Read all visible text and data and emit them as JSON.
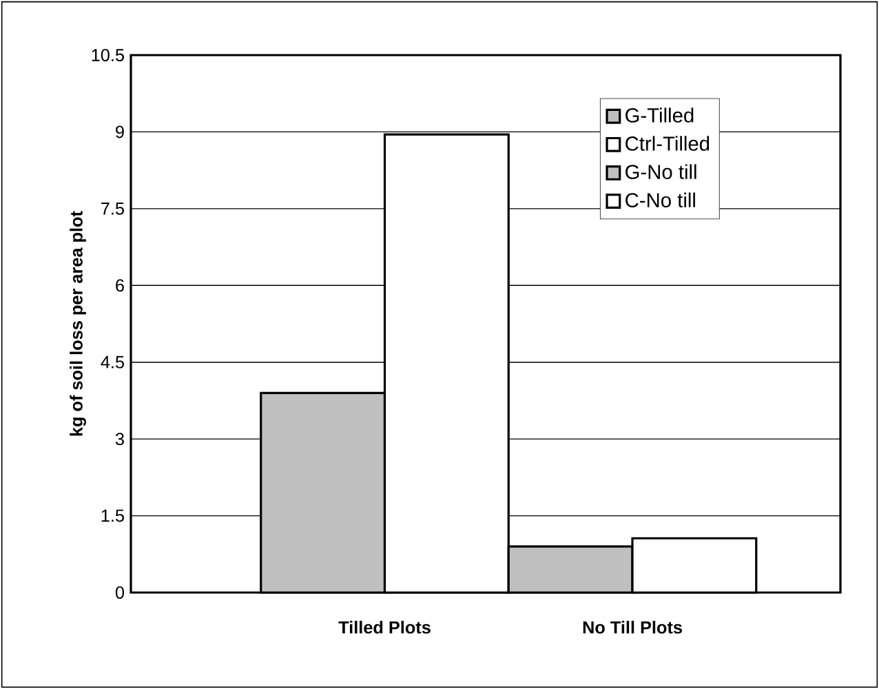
{
  "chart_data": {
    "type": "bar",
    "ylabel": "kg of soil loss per area plot",
    "categories": [
      "Tilled Plots",
      "No Till Plots"
    ],
    "series": [
      {
        "name": "G-Tilled",
        "color": "#c0c0c0",
        "values": [
          3.9,
          null
        ]
      },
      {
        "name": "Ctrl-Tilled",
        "color": "#ffffff",
        "values": [
          8.95,
          null
        ]
      },
      {
        "name": "G-No till",
        "color": "#c0c0c0",
        "values": [
          null,
          0.9
        ]
      },
      {
        "name": "C-No till",
        "color": "#ffffff",
        "values": [
          null,
          1.06
        ]
      }
    ],
    "ylim": [
      0,
      10.5
    ],
    "yticks": [
      0,
      1.5,
      3,
      4.5,
      6,
      7.5,
      9,
      10.5
    ],
    "grid": "y",
    "legend": "top right"
  }
}
